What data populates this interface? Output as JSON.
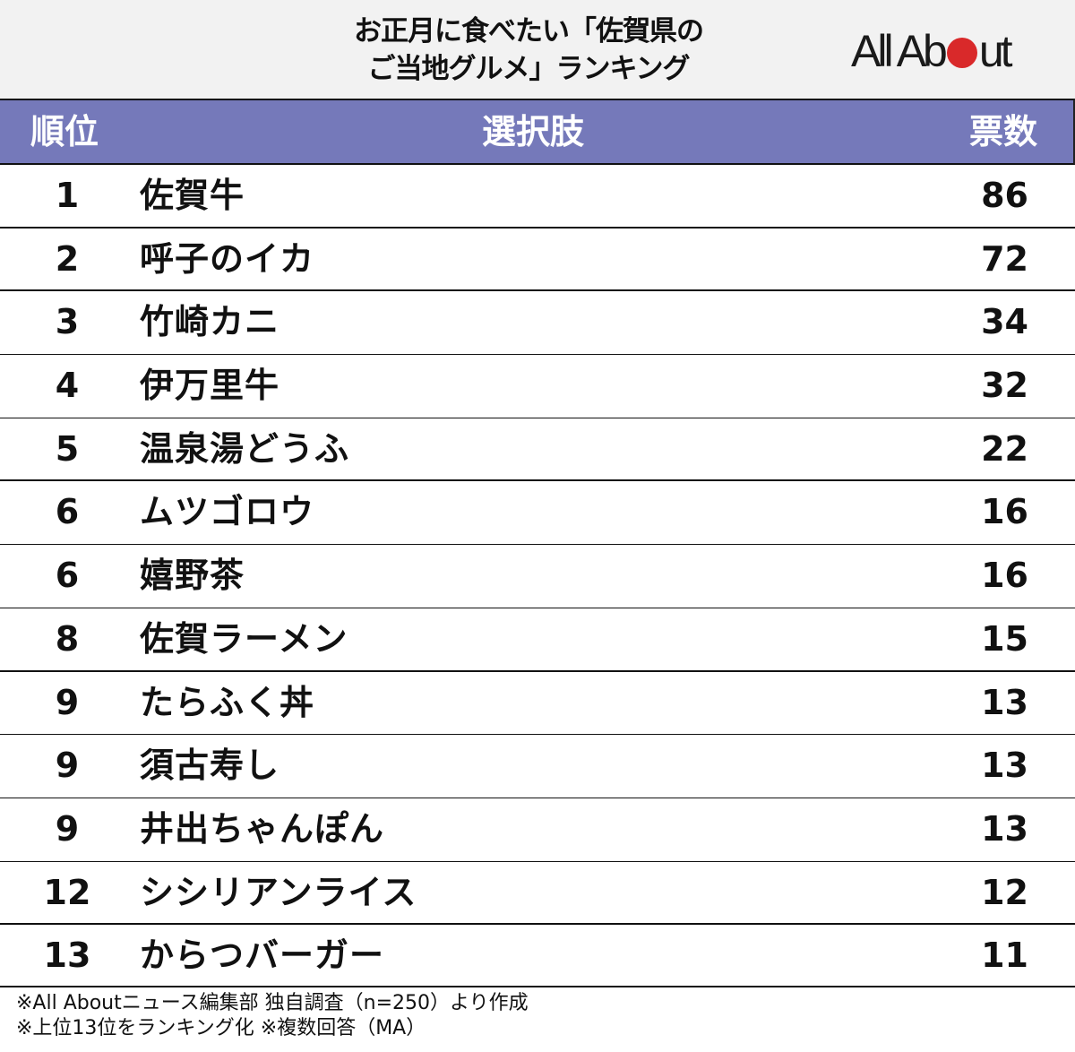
{
  "header": {
    "title_line1": "お正月に食べたい「佐賀県の",
    "title_line2": "ご当地グルメ」ランキング",
    "logo": {
      "text_before": "All Ab",
      "text_after": "ut",
      "dot_color": "#d9292a"
    }
  },
  "table": {
    "header_color": "#7579ba",
    "columns": [
      "順位",
      "選択肢",
      "票数"
    ],
    "rows": [
      {
        "rank": "1",
        "name": "佐賀牛",
        "votes": "86"
      },
      {
        "rank": "2",
        "name": "呼子のイカ",
        "votes": "72"
      },
      {
        "rank": "3",
        "name": "竹崎カニ",
        "votes": "34"
      },
      {
        "rank": "4",
        "name": "伊万里牛",
        "votes": "32"
      },
      {
        "rank": "5",
        "name": "温泉湯どうふ",
        "votes": "22"
      },
      {
        "rank": "6",
        "name": "ムツゴロウ",
        "votes": "16"
      },
      {
        "rank": "6",
        "name": "嬉野茶",
        "votes": "16"
      },
      {
        "rank": "8",
        "name": "佐賀ラーメン",
        "votes": "15"
      },
      {
        "rank": "9",
        "name": "たらふく丼",
        "votes": "13"
      },
      {
        "rank": "9",
        "name": "須古寿し",
        "votes": "13"
      },
      {
        "rank": "9",
        "name": "井出ちゃんぽん",
        "votes": "13"
      },
      {
        "rank": "12",
        "name": "シシリアンライス",
        "votes": "12"
      },
      {
        "rank": "13",
        "name": "からつバーガー",
        "votes": "11"
      }
    ]
  },
  "footer": {
    "note1": "※All Aboutニュース編集部 独自調査（n=250）より作成",
    "note2": "※上位13位をランキング化 ※複数回答（MA）"
  },
  "chart_data": {
    "type": "table",
    "title": "お正月に食べたい「佐賀県のご当地グルメ」ランキング",
    "columns": [
      "順位",
      "選択肢",
      "票数"
    ],
    "categories": [
      "佐賀牛",
      "呼子のイカ",
      "竹崎カニ",
      "伊万里牛",
      "温泉湯どうふ",
      "ムツゴロウ",
      "嬉野茶",
      "佐賀ラーメン",
      "たらふく丼",
      "須古寿し",
      "井出ちゃんぽん",
      "シシリアンライス",
      "からつバーガー"
    ],
    "ranks": [
      1,
      2,
      3,
      4,
      5,
      6,
      6,
      8,
      9,
      9,
      9,
      12,
      13
    ],
    "values": [
      86,
      72,
      34,
      32,
      22,
      16,
      16,
      15,
      13,
      13,
      13,
      12,
      11
    ],
    "notes": [
      "※All Aboutニュース編集部 独自調査（n=250）より作成",
      "※上位13位をランキング化 ※複数回答（MA）"
    ]
  }
}
